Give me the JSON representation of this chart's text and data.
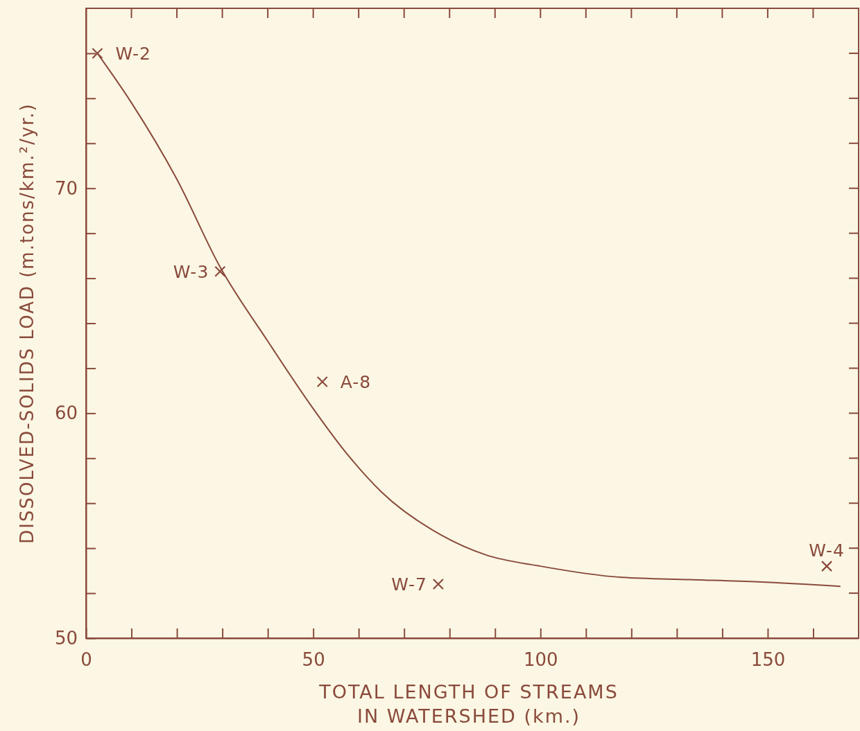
{
  "chart_data": {
    "type": "line",
    "xlabel": "TOTAL LENGTH OF STREAMS\nIN WATERSHED (km.)",
    "ylabel": "DISSOLVED-SOLIDS LOAD  (m.tons/km.²/yr.)",
    "xlim": [
      0,
      170
    ],
    "ylim": [
      50,
      78
    ],
    "xticks": [
      0,
      {
        "value": 10,
        "label": null
      },
      {
        "value": 20,
        "label": null
      },
      {
        "value": 30,
        "label": null
      },
      {
        "value": 40,
        "label": null
      },
      50,
      {
        "value": 60,
        "label": null
      },
      {
        "value": 70,
        "label": null
      },
      {
        "value": 80,
        "label": null
      },
      {
        "value": 90,
        "label": null
      },
      100,
      {
        "value": 110,
        "label": null
      },
      {
        "value": 120,
        "label": null
      },
      {
        "value": 130,
        "label": null
      },
      {
        "value": 140,
        "label": null
      },
      150,
      {
        "value": 160,
        "label": null
      }
    ],
    "yticks": [
      50,
      {
        "value": 52,
        "label": null
      },
      {
        "value": 54,
        "label": null
      },
      {
        "value": 56,
        "label": null
      },
      {
        "value": 58,
        "label": null
      },
      60,
      {
        "value": 62,
        "label": null
      },
      {
        "value": 64,
        "label": null
      },
      {
        "value": 66,
        "label": null
      },
      {
        "value": 68,
        "label": null
      },
      70,
      {
        "value": 72,
        "label": null
      },
      {
        "value": 74,
        "label": null
      },
      {
        "value": 76,
        "label": null
      }
    ],
    "grid": false,
    "series": [
      {
        "color": "#8a4a3c",
        "marker": "none",
        "x": [
          2.5,
          10,
          20,
          29.5,
          40,
          50,
          57,
          65,
          78,
          88,
          100,
          118,
          133,
          148,
          166
        ],
        "values": [
          76,
          73.8,
          70.4,
          66.5,
          63.2,
          60.2,
          58.3,
          56.5,
          54.6,
          53.7,
          53.2,
          52.7,
          52.6,
          52.5,
          52.3
        ]
      },
      {
        "type": "scatter",
        "color": "#8a4a3c",
        "marker": "cross",
        "x": [
          2.5,
          29.5,
          52,
          77.5,
          163
        ],
        "values": [
          76,
          66.3,
          61.4,
          52.4,
          53.2
        ]
      }
    ],
    "annotations": [
      {
        "text": "W-2",
        "x": 2.5,
        "y": 76
      },
      {
        "text": "W-3",
        "x": 29.5,
        "y": 66.3
      },
      {
        "text": "A-8",
        "x": 52,
        "y": 61.4
      },
      {
        "text": "W-7",
        "x": 77.5,
        "y": 52.4
      },
      {
        "text": "W-4",
        "x": 163,
        "y": 53.2
      }
    ]
  }
}
